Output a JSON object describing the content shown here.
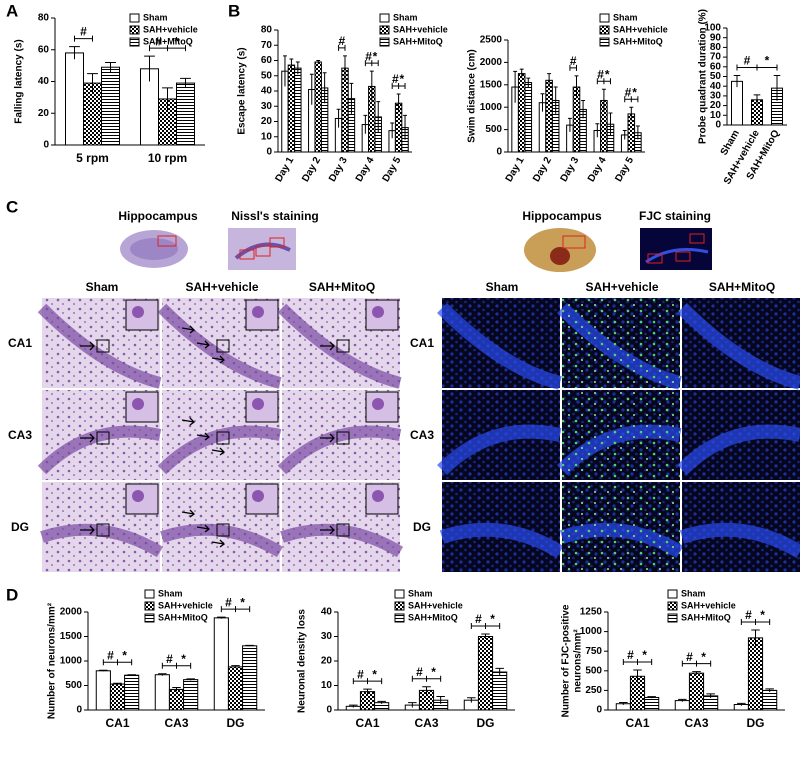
{
  "figure": {
    "panel_labels": [
      "A",
      "B",
      "C",
      "D"
    ],
    "image_titles": [
      "Hippocampus",
      "Nissl's staining",
      "Hippocampus",
      "FJC staining"
    ],
    "groups": [
      "Sham",
      "SAH+vehicle",
      "SAH+MitoQ"
    ],
    "regions": [
      "CA1",
      "CA3",
      "DG"
    ]
  },
  "chart_data": [
    {
      "type": "bar",
      "ylabel": [
        "Falling latency (s)"
      ],
      "categories": [
        "5 rpm",
        "10 rpm"
      ],
      "series": [
        {
          "name": "Sham",
          "pattern": "solid",
          "values": [
            58,
            48
          ],
          "errors": [
            4,
            8
          ]
        },
        {
          "name": "SAH+vehicle",
          "pattern": "checker",
          "values": [
            39,
            29
          ],
          "errors": [
            6,
            7
          ]
        },
        {
          "name": "SAH+MitoQ",
          "pattern": "lines",
          "values": [
            49,
            39
          ],
          "errors": [
            3,
            3
          ]
        }
      ],
      "ylim": [
        0,
        80
      ],
      "yticks": [
        0,
        20,
        40,
        60,
        80
      ],
      "rotate_labels": false,
      "annotations": [
        {
          "category": "5 rpm",
          "texts": [
            "#"
          ]
        },
        {
          "category": "10 rpm",
          "texts": [
            "#",
            "*"
          ]
        }
      ]
    },
    {
      "type": "bar",
      "ylabel": [
        "Escape latency (s)"
      ],
      "categories": [
        "Day 1",
        "Day 2",
        "Day 3",
        "Day 4",
        "Day 5"
      ],
      "series": [
        {
          "name": "Sham",
          "pattern": "solid",
          "values": [
            53,
            41,
            22,
            18,
            14
          ],
          "errors": [
            10,
            10,
            6,
            6,
            5
          ]
        },
        {
          "name": "SAH+vehicle",
          "pattern": "checker",
          "values": [
            57,
            59,
            55,
            43,
            32
          ],
          "errors": [
            4,
            1,
            8,
            10,
            6
          ]
        },
        {
          "name": "SAH+MitoQ",
          "pattern": "lines",
          "values": [
            55,
            42,
            35,
            23,
            16
          ],
          "errors": [
            4,
            10,
            10,
            10,
            8
          ]
        }
      ],
      "ylim": [
        0,
        80
      ],
      "yticks": [
        0,
        10,
        20,
        30,
        40,
        50,
        60,
        70,
        80
      ],
      "rotate_labels": true,
      "annotations": [
        {
          "category": "Day 3",
          "texts": [
            "#"
          ]
        },
        {
          "category": "Day 4",
          "texts": [
            "#",
            "*"
          ]
        },
        {
          "category": "Day 5",
          "texts": [
            "#",
            "*"
          ]
        }
      ]
    },
    {
      "type": "bar",
      "ylabel": [
        "Swim distance (cm)"
      ],
      "categories": [
        "Day 1",
        "Day 2",
        "Day 3",
        "Day 4",
        "Day 5"
      ],
      "series": [
        {
          "name": "Sham",
          "pattern": "solid",
          "values": [
            1450,
            1100,
            600,
            480,
            380
          ],
          "errors": [
            350,
            200,
            150,
            150,
            100
          ]
        },
        {
          "name": "SAH+vehicle",
          "pattern": "checker",
          "values": [
            1750,
            1600,
            1450,
            1150,
            850
          ],
          "errors": [
            100,
            150,
            250,
            250,
            150
          ]
        },
        {
          "name": "SAH+MitoQ",
          "pattern": "lines",
          "values": [
            1550,
            1150,
            950,
            620,
            430
          ],
          "errors": [
            100,
            300,
            200,
            250,
            150
          ]
        }
      ],
      "ylim": [
        0,
        2500
      ],
      "yticks": [
        0,
        500,
        1000,
        1500,
        2000,
        2500
      ],
      "rotate_labels": true,
      "annotations": [
        {
          "category": "Day 3",
          "texts": [
            "#"
          ]
        },
        {
          "category": "Day 4",
          "texts": [
            "#",
            "*"
          ]
        },
        {
          "category": "Day 5",
          "texts": [
            "#",
            "*"
          ]
        }
      ]
    },
    {
      "type": "bar",
      "ylabel": [
        "Probe quadrant duration (%)"
      ],
      "categories": [
        "Sham",
        "SAH+vehicle",
        "SAH+MitoQ"
      ],
      "values": [
        45,
        26,
        38
      ],
      "errors": [
        6,
        5,
        13
      ],
      "patterns": [
        "solid",
        "checker",
        "lines"
      ],
      "ylim": [
        0,
        100
      ],
      "yticks": [
        0,
        10,
        20,
        30,
        40,
        50,
        60,
        70,
        80,
        90,
        100
      ],
      "rotate_labels": true,
      "annotations": [
        {
          "texts": [
            "#",
            "*"
          ]
        }
      ]
    },
    {
      "type": "bar",
      "ylabel": [
        "Number of neurons/mm²"
      ],
      "categories": [
        "CA1",
        "CA3",
        "DG"
      ],
      "series": [
        {
          "name": "Sham",
          "pattern": "solid",
          "values": [
            800,
            720,
            1880
          ],
          "errors": [
            10,
            20,
            15
          ]
        },
        {
          "name": "SAH+vehicle",
          "pattern": "checker",
          "values": [
            530,
            420,
            880
          ],
          "errors": [
            15,
            40,
            25
          ]
        },
        {
          "name": "SAH+MitoQ",
          "pattern": "lines",
          "values": [
            710,
            620,
            1310
          ],
          "errors": [
            10,
            15,
            10
          ]
        }
      ],
      "ylim": [
        0,
        2000
      ],
      "yticks": [
        0,
        500,
        1000,
        1500,
        2000
      ],
      "rotate_labels": false,
      "annotations": [
        {
          "category": "CA1",
          "texts": [
            "#",
            "*"
          ]
        },
        {
          "category": "CA3",
          "texts": [
            "#",
            "*"
          ]
        },
        {
          "category": "DG",
          "texts": [
            "#",
            "*"
          ]
        }
      ]
    },
    {
      "type": "bar",
      "ylabel": [
        "Neuronal density loss"
      ],
      "categories": [
        "CA1",
        "CA3",
        "DG"
      ],
      "series": [
        {
          "name": "Sham",
          "pattern": "solid",
          "values": [
            1.5,
            2,
            4
          ],
          "errors": [
            0.5,
            1,
            1
          ]
        },
        {
          "name": "SAH+vehicle",
          "pattern": "checker",
          "values": [
            7.5,
            8,
            30
          ],
          "errors": [
            1,
            1.5,
            1
          ]
        },
        {
          "name": "SAH+MitoQ",
          "pattern": "lines",
          "values": [
            3,
            4,
            15.5
          ],
          "errors": [
            0.5,
            1.5,
            1.5
          ]
        }
      ],
      "ylim": [
        0,
        40
      ],
      "yticks": [
        0,
        10,
        20,
        30,
        40
      ],
      "rotate_labels": false,
      "annotations": [
        {
          "category": "CA1",
          "texts": [
            "#",
            "*"
          ]
        },
        {
          "category": "CA3",
          "texts": [
            "#",
            "*"
          ]
        },
        {
          "category": "DG",
          "texts": [
            "#",
            "*"
          ]
        }
      ]
    },
    {
      "type": "bar",
      "ylabel": [
        "Number of FJC-positive",
        "neurons/mm²"
      ],
      "categories": [
        "CA1",
        "CA3",
        "DG"
      ],
      "series": [
        {
          "name": "Sham",
          "pattern": "solid",
          "values": [
            80,
            120,
            70
          ],
          "errors": [
            15,
            15,
            15
          ]
        },
        {
          "name": "SAH+vehicle",
          "pattern": "checker",
          "values": [
            430,
            470,
            920
          ],
          "errors": [
            80,
            20,
            100
          ]
        },
        {
          "name": "SAH+MitoQ",
          "pattern": "lines",
          "values": [
            160,
            180,
            250
          ],
          "errors": [
            10,
            25,
            20
          ]
        }
      ],
      "ylim": [
        0,
        1250
      ],
      "yticks": [
        0,
        250,
        500,
        750,
        1000,
        1250
      ],
      "rotate_labels": false,
      "annotations": [
        {
          "category": "CA1",
          "texts": [
            "#",
            "*"
          ]
        },
        {
          "category": "CA3",
          "texts": [
            "#",
            "*"
          ]
        },
        {
          "category": "DG",
          "texts": [
            "#",
            "*"
          ]
        }
      ]
    }
  ]
}
